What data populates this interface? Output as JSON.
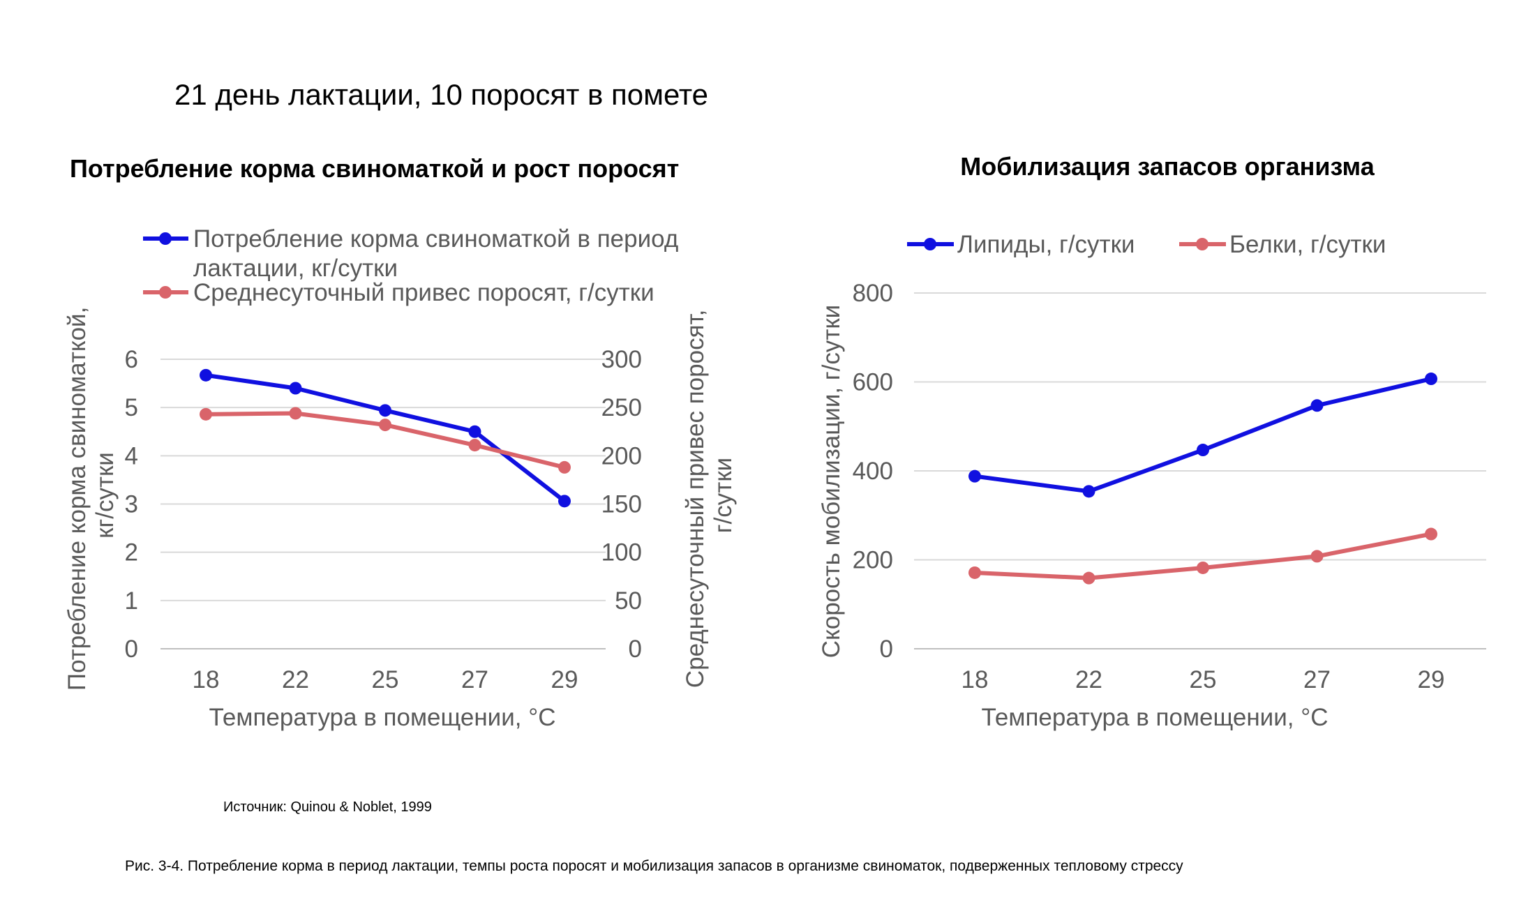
{
  "heading": "21 день лактации, 10 поросят в помете",
  "source": "Источник: Quinou & Noblet, 1999",
  "caption": "Рис. 3-4. Потребление корма в период лактации, темпы роста поросят и мобилизация запасов в организме свиноматок, подверженных тепловому стрессу",
  "colors": {
    "blue": "#1010e0",
    "red": "#d9646a",
    "grid": "#d9d9d9",
    "text": "#595959"
  },
  "chart_data": [
    {
      "type": "line",
      "title": "Потребление корма свиноматкой и рост поросят",
      "categories": [
        "18",
        "22",
        "25",
        "27",
        "29"
      ],
      "xlabel": "Температура в помещении, °С",
      "ylabel": [
        "Потребление корма свиноматкой,",
        "кг/сутки"
      ],
      "y2label": [
        "Среднесуточный привес поросят,",
        "г/сутки"
      ],
      "ylim": [
        0,
        6
      ],
      "yticks": [
        "0",
        "1",
        "2",
        "3",
        "4",
        "5",
        "6"
      ],
      "y2lim": [
        0,
        300
      ],
      "y2ticks": [
        "0",
        "50",
        "100",
        "150",
        "200",
        "250",
        "300"
      ],
      "grid": true,
      "legend_position": "top",
      "series": [
        {
          "name_lines": [
            "Потребление корма свиноматкой в период",
            "лактации, кг/сутки"
          ],
          "axis": "left",
          "color": "#1010e0",
          "values": [
            5.67,
            5.4,
            4.94,
            4.5,
            3.06
          ]
        },
        {
          "name_lines": [
            "Среднесуточный привес поросят, г/сутки"
          ],
          "axis": "right",
          "color": "#d9646a",
          "values": [
            243,
            244,
            232,
            211,
            188
          ]
        }
      ]
    },
    {
      "type": "line",
      "title": "Мобилизация запасов организма",
      "categories": [
        "18",
        "22",
        "25",
        "27",
        "29"
      ],
      "xlabel": "Температура в помещении, °С",
      "ylabel": "Скорость мобилизации, г/сутки",
      "ylim": [
        0,
        800
      ],
      "yticks": [
        "0",
        "200",
        "400",
        "600",
        "800"
      ],
      "grid": true,
      "legend_position": "top",
      "series": [
        {
          "name": "Липиды, г/сутки",
          "color": "#1010e0",
          "values": [
            388,
            354,
            447,
            547,
            607
          ]
        },
        {
          "name": "Белки, г/сутки",
          "color": "#d9646a",
          "values": [
            171,
            159,
            182,
            208,
            258
          ]
        }
      ]
    }
  ]
}
